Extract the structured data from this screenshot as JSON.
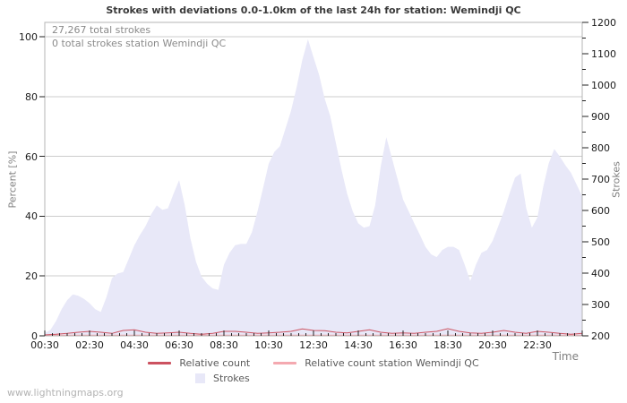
{
  "title": "Strokes with deviations 0.0-1.0km of the last 24h for station: Wemindji QC",
  "watermark": "www.lightningmaps.org",
  "annotations": {
    "total_strokes": "27,267 total strokes",
    "station_total_strokes": "0 total strokes station Wemindji QC"
  },
  "axes": {
    "left": {
      "title": "Percent  [%]",
      "ticks": [
        0,
        20,
        40,
        60,
        80,
        100
      ]
    },
    "right": {
      "title": "Strokes",
      "ticks": [
        200,
        300,
        400,
        500,
        600,
        700,
        800,
        900,
        1000,
        1100,
        1200
      ],
      "minor_step": 50
    },
    "x": {
      "title": "Time",
      "tick_labels": [
        "00:30",
        "02:30",
        "04:30",
        "06:30",
        "08:30",
        "10:30",
        "12:30",
        "14:30",
        "16:30",
        "18:30",
        "20:30",
        "22:30"
      ]
    }
  },
  "legend": [
    {
      "label": "Relative count",
      "color": "#cc5260",
      "type": "line"
    },
    {
      "label": "Relative count station Wemindji QC",
      "color": "#f4a9b0",
      "type": "line"
    },
    {
      "label": "Strokes",
      "color": "#e8e8f8",
      "type": "area"
    }
  ],
  "colors": {
    "area_fill": "#e8e8f8",
    "relative_count_line": "#cc5260",
    "station_line": "#f4a9b0",
    "gridline": "#cccccc",
    "plot_border": "#b5b5b5",
    "tick_mark": "#222222"
  },
  "chart_data": {
    "type": "area",
    "title": "Strokes with deviations 0.0-1.0km of the last 24h for station: Wemindji QC",
    "x_axis": {
      "label": "Time",
      "start_hour": 0.5,
      "end_hour": 24.5,
      "tick_labels": [
        "00:30",
        "02:30",
        "04:30",
        "06:30",
        "08:30",
        "10:30",
        "12:30",
        "14:30",
        "16:30",
        "18:30",
        "20:30",
        "22:30"
      ],
      "grid": false
    },
    "y_left_axis": {
      "label": "Percent  [%]",
      "range": [
        0,
        100
      ],
      "grid": true
    },
    "y_right_axis": {
      "label": "Strokes",
      "range": [
        200,
        1200
      ],
      "grid": false
    },
    "legend_position": "bottom-center",
    "annotations": [
      "27,267 total strokes",
      "0 total strokes station Wemindji QC"
    ],
    "series": [
      {
        "name": "Strokes",
        "type": "area",
        "axis": "right",
        "color": "#e8e8f8",
        "t_start": 0.5,
        "t_step": 0.25,
        "values": [
          209,
          219,
          247,
          285,
          314,
          332,
          328,
          318,
          304,
          285,
          276,
          323,
          384,
          399,
          403,
          446,
          489,
          522,
          550,
          588,
          616,
          602,
          607,
          654,
          697,
          616,
          512,
          437,
          389,
          366,
          351,
          347,
          427,
          465,
          489,
          493,
          493,
          531,
          597,
          673,
          749,
          787,
          805,
          862,
          919,
          995,
          1080,
          1146,
          1089,
          1032,
          957,
          900,
          815,
          730,
          654,
          597,
          559,
          545,
          550,
          616,
          739,
          834,
          768,
          701,
          635,
          597,
          559,
          522,
          484,
          460,
          451,
          474,
          484,
          484,
          474,
          427,
          375,
          427,
          465,
          474,
          503,
          550,
          597,
          654,
          705,
          718,
          607,
          545,
          578,
          673,
          749,
          796,
          772,
          744,
          720,
          682,
          645
        ]
      },
      {
        "name": "Relative count",
        "type": "line",
        "axis": "left",
        "color": "#cc5260",
        "t_start": 0.5,
        "t_step": 0.5,
        "values": [
          0.3,
          0.5,
          0.8,
          1.2,
          1.5,
          1.2,
          0.8,
          1.8,
          2.0,
          1.2,
          0.8,
          1.0,
          1.2,
          0.8,
          0.5,
          0.8,
          1.5,
          1.5,
          1.2,
          0.8,
          1.0,
          1.2,
          1.5,
          2.3,
          1.8,
          1.7,
          1.2,
          1.0,
          1.5,
          2.0,
          1.2,
          0.8,
          1.0,
          0.8,
          1.2,
          1.5,
          2.4,
          1.5,
          1.0,
          0.8,
          1.2,
          1.8,
          1.2,
          0.8,
          1.5,
          1.2,
          0.8,
          0.5,
          0.8
        ]
      },
      {
        "name": "Relative count station Wemindji QC",
        "type": "line",
        "axis": "left",
        "color": "#f4a9b0",
        "t_start": 0.5,
        "t_step": 24.0,
        "values": [
          0.2,
          0.2
        ]
      }
    ]
  }
}
